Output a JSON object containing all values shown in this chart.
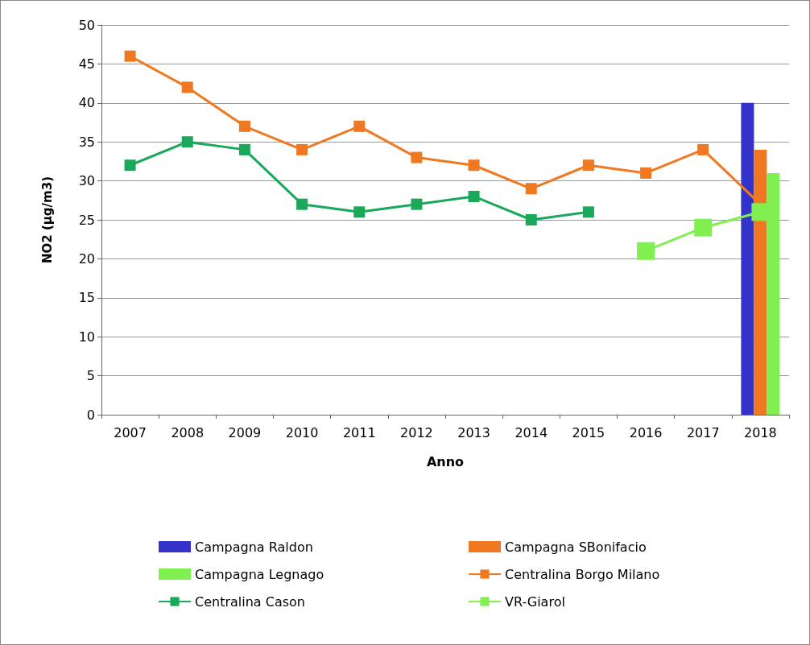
{
  "chart_data": {
    "type": "line",
    "xlabel": "Anno",
    "ylabel": "NO2 (µg/m3)",
    "categories": [
      "2007",
      "2008",
      "2009",
      "2010",
      "2011",
      "2012",
      "2013",
      "2014",
      "2015",
      "2016",
      "2017",
      "2018"
    ],
    "series": [
      {
        "name": "Campagna Raldon",
        "type": "bar",
        "color": "#3333cc",
        "values": [
          null,
          null,
          null,
          null,
          null,
          null,
          null,
          null,
          null,
          null,
          null,
          40
        ]
      },
      {
        "name": "Campagna SBonifacio",
        "type": "bar",
        "color": "#f07820",
        "values": [
          null,
          null,
          null,
          null,
          null,
          null,
          null,
          null,
          null,
          null,
          null,
          34
        ]
      },
      {
        "name": "Campagna Legnago",
        "type": "bar",
        "color": "#80f050",
        "values": [
          null,
          null,
          null,
          null,
          null,
          null,
          null,
          null,
          null,
          null,
          null,
          31
        ]
      },
      {
        "name": "Centralina Borgo Milano",
        "color": "#f07820",
        "values": [
          46,
          42,
          37,
          34,
          37,
          33,
          32,
          29,
          32,
          31,
          34,
          27
        ]
      },
      {
        "name": "Centralina Cason",
        "color": "#1aa85a",
        "values": [
          32,
          35,
          34,
          27,
          26,
          27,
          28,
          25,
          26,
          null,
          null,
          null
        ]
      },
      {
        "name": "VR-Giarol",
        "color": "#80f050",
        "values": [
          null,
          null,
          null,
          null,
          null,
          null,
          null,
          null,
          null,
          21,
          24,
          26
        ]
      }
    ],
    "ylim": [
      0,
      50
    ],
    "yticks": [
      0,
      5,
      10,
      15,
      20,
      25,
      30,
      35,
      40,
      45,
      50
    ],
    "grid": "y",
    "legend": "bottom",
    "marker": "square",
    "line_style": "solid"
  }
}
